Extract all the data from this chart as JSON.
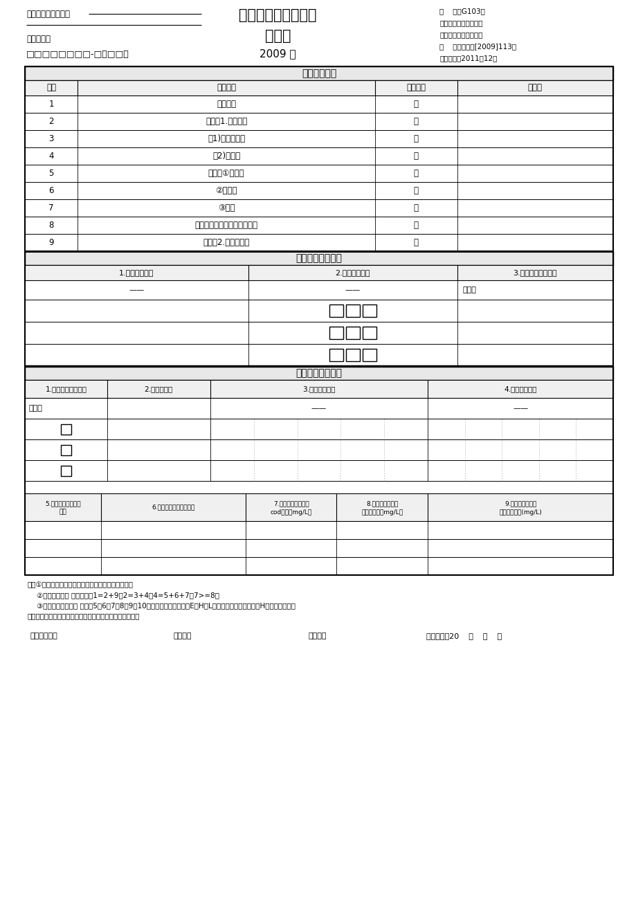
{
  "title_main": "工业用水、排水情况",
  "title_sub": "调查表",
  "year": "2009 年",
  "top_left_line1": "单位名称（公章）：",
  "top_left_line2": "单位代码：",
  "top_left_boxes": "□□□□□□□□-□（□□）",
  "top_right": [
    "表    号：G103表",
    "制表机关：环境保护部",
    "批准机关：国家统计局",
    "文    号：国统制[2009]113号",
    "有效期至：2011年12月"
  ],
  "section1_title": "一、用水情况",
  "section1_headers": [
    "序号",
    "指标名称",
    "计量单位",
    "年实际"
  ],
  "section1_rows": [
    [
      "1",
      "用水总量",
      "吨",
      ""
    ],
    [
      "2",
      "其中：1.取水总量",
      "吨",
      ""
    ],
    [
      "3",
      "（1)城市自来水",
      "吨",
      ""
    ],
    [
      "4",
      "（2)自备水",
      "吨",
      ""
    ],
    [
      "5",
      "其中：①地表水",
      "吨",
      ""
    ],
    [
      "6",
      "②地下水",
      "吨",
      ""
    ],
    [
      "7",
      "③其他",
      "吨",
      ""
    ],
    [
      "8",
      "其中：利用周边工业企业水量",
      "吨",
      ""
    ],
    [
      "9",
      "其中：2.重复用水量",
      "吨",
      ""
    ]
  ],
  "section2_title": "二、废水产生情况",
  "section2_headers": [
    "1.废水类型名称",
    "2.废水类型代码",
    "3.废水产生量（吨）"
  ],
  "section3_title": "三、废水排放情况",
  "section3_headers": [
    "1.排水去向类型代码",
    "2.废水排放量",
    "3.受纳水体名称",
    "4.受纳水体代码"
  ],
  "section4_headers": [
    "5.排入的污水处理厂\n名称",
    "6.排入的污水处理厂代码",
    "7.排入污水处理厂的\ncod浓度（mg/L）",
    "8.排入污水处理厂\n的氨氮浓度（mg/L）",
    "9.排入污水处理厂\n的石油类浓度(mg/L)"
  ],
  "footer_notes": [
    "注：①表中各项指标、除污染物浓度外，均保留整数。",
    "    ②一、用水情况 指标关系：1=2+9，2=3+4，4=5+6+7，7>=8。",
    "    ③三、废水排放情况 中的第5、6、7、8、9、10项仅限排水去向类型为E、H和L的企业填报。排水去向为H的企业填报所排",
    "入企业的组织机构代码、名称及排入该企业的污染物浓度。"
  ],
  "footer_sign": [
    "单位负责人：",
    "审核人：",
    "填表人：",
    "填表日期：20    年    月    日"
  ],
  "bg_color": "#ffffff",
  "line_color": "#000000",
  "header_bg": "#f0f0f0",
  "section_bg": "#e8e8e8"
}
